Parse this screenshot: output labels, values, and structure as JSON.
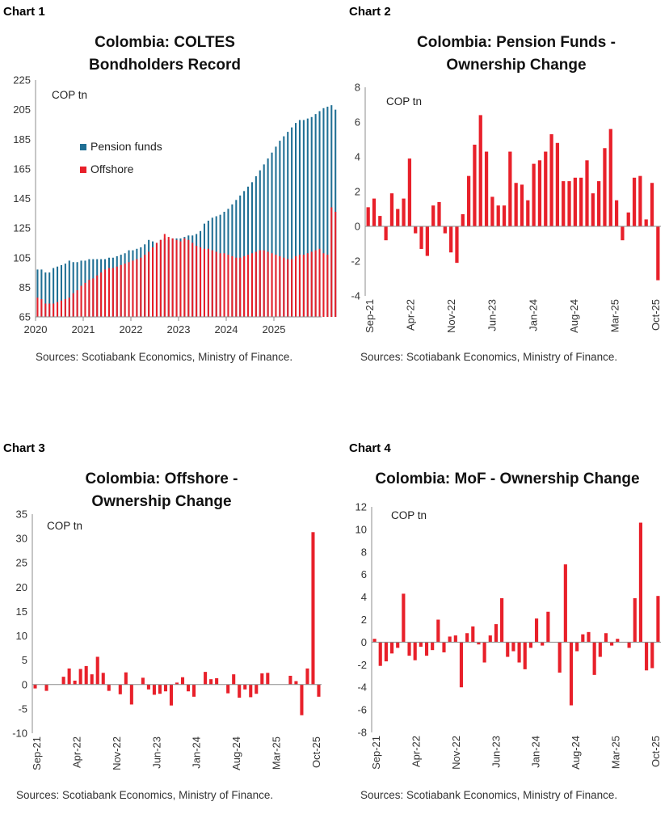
{
  "charts": [
    {
      "label": "Chart 1",
      "title_lines": [
        "Colombia: COLTES",
        "Bondholders Record"
      ],
      "unit": "COP tn",
      "source": "Sources: Scotiabank Economics, Ministry of Finance.",
      "legend": [
        {
          "name": "Pension funds",
          "color": "#1f6f94"
        },
        {
          "name": "Offshore",
          "color": "#e8202a"
        }
      ]
    },
    {
      "label": "Chart 2",
      "title_lines": [
        "Colombia: Pension Funds -",
        "Ownership Change"
      ],
      "unit": "COP tn",
      "source": "Sources: Scotiabank Economics, Ministry of Finance."
    },
    {
      "label": "Chart 3",
      "title_lines": [
        "Colombia: Offshore -",
        "Ownership Change"
      ],
      "unit": "COP tn",
      "source": "Sources: Scotiabank Economics, Ministry of Finance."
    },
    {
      "label": "Chart 4",
      "title_lines": [
        "Colombia: MoF - Ownership Change"
      ],
      "unit": "COP tn",
      "source": "Sources: Scotiabank Economics, Ministry of Finance."
    }
  ],
  "chart_data": [
    {
      "type": "bar",
      "title": "Colombia: COLTES Bondholders Record",
      "ylabel": "COP tn",
      "ylim": [
        65,
        225
      ],
      "yticks": [
        65,
        85,
        105,
        125,
        145,
        165,
        185,
        205,
        225
      ],
      "xticklabels": [
        "2020",
        "2021",
        "2022",
        "2023",
        "2024",
        "2025"
      ],
      "x_start": "Jan-2020",
      "frequency": "monthly",
      "grid": false,
      "legend_position": "middle-left",
      "series": [
        {
          "name": "Pension funds",
          "color": "#1f6f94",
          "values": [
            97,
            97,
            95,
            95,
            98,
            99,
            100,
            101,
            103,
            102,
            102,
            103,
            103,
            104,
            104,
            104,
            104,
            104,
            105,
            105,
            106,
            107,
            108,
            110,
            110,
            111,
            112,
            114,
            117,
            116,
            115,
            117,
            118,
            117,
            118,
            118,
            118,
            119,
            120,
            120,
            121,
            123,
            128,
            130,
            132,
            133,
            134,
            136,
            138,
            141,
            144,
            147,
            150,
            153,
            156,
            160,
            164,
            168,
            172,
            176,
            180,
            184,
            187,
            190,
            193,
            196,
            198,
            198,
            199,
            200,
            202,
            204,
            206,
            207,
            208,
            205
          ]
        },
        {
          "name": "Offshore",
          "color": "#e8202a",
          "values": [
            78,
            77,
            74,
            74,
            74,
            75,
            76,
            77,
            78,
            81,
            83,
            86,
            88,
            90,
            91,
            93,
            95,
            97,
            98,
            98,
            99,
            100,
            101,
            102,
            103,
            104,
            105,
            107,
            109,
            112,
            115,
            117,
            121,
            119,
            118,
            117,
            116,
            118,
            117,
            115,
            113,
            112,
            111,
            111,
            110,
            109,
            108,
            108,
            107,
            106,
            105,
            105,
            106,
            107,
            108,
            109,
            110,
            110,
            109,
            108,
            107,
            106,
            105,
            104,
            104,
            106,
            107,
            107,
            108,
            109,
            110,
            111,
            108,
            107,
            139,
            136
          ]
        }
      ]
    },
    {
      "type": "bar",
      "title": "Colombia: Pension Funds - Ownership Change",
      "ylabel": "COP tn",
      "ylim": [
        -4,
        8
      ],
      "yticks": [
        -4,
        -2,
        0,
        2,
        4,
        6,
        8
      ],
      "xticklabels": [
        "Sep-21",
        "Apr-22",
        "Nov-22",
        "Jun-23",
        "Jan-24",
        "Aug-24",
        "Mar-25",
        "Oct-25"
      ],
      "x_start": "Sep-2021",
      "frequency": "monthly",
      "grid": false,
      "series": [
        {
          "name": "Pension funds",
          "color": "#e8202a",
          "values": [
            1.1,
            1.6,
            0.6,
            -0.8,
            1.9,
            1.0,
            1.6,
            3.9,
            -0.4,
            -1.3,
            -1.7,
            1.2,
            1.4,
            -0.4,
            -1.5,
            -2.1,
            0.7,
            2.9,
            4.7,
            6.4,
            4.3,
            1.7,
            1.2,
            1.2,
            4.3,
            2.5,
            2.4,
            1.5,
            3.6,
            3.8,
            4.3,
            5.3,
            4.8,
            2.6,
            2.6,
            2.8,
            2.8,
            3.8,
            1.9,
            2.6,
            4.5,
            5.6,
            1.5,
            -0.8,
            0.8,
            2.8,
            2.9,
            0.4,
            2.5,
            -3.1
          ]
        }
      ]
    },
    {
      "type": "bar",
      "title": "Colombia: Offshore - Ownership Change",
      "ylabel": "COP tn",
      "ylim": [
        -10,
        35
      ],
      "yticks": [
        -10,
        -5,
        0,
        5,
        10,
        15,
        20,
        25,
        30,
        35
      ],
      "xticklabels": [
        "Sep-21",
        "Apr-22",
        "Nov-22",
        "Jun-23",
        "Jan-24",
        "Aug-24",
        "Mar-25",
        "Oct-25"
      ],
      "x_start": "Sep-2021",
      "frequency": "monthly",
      "grid": false,
      "series": [
        {
          "name": "Offshore",
          "color": "#e8202a",
          "values": [
            -0.8,
            0,
            -1.3,
            0,
            0,
            1.6,
            3.3,
            0.8,
            3.2,
            3.8,
            2.1,
            5.7,
            2.4,
            -1.3,
            0,
            -2.0,
            2.5,
            -4.1,
            0,
            1.4,
            -1.0,
            -2.1,
            -1.9,
            -1.4,
            -4.3,
            0.4,
            1.5,
            -1.4,
            -2.5,
            0,
            2.6,
            1.1,
            1.3,
            0,
            -1.8,
            2.1,
            -2.7,
            -1.0,
            -2.6,
            -1.9,
            2.3,
            2.4,
            0,
            0,
            0,
            1.8,
            0.7,
            -6.3,
            3.3,
            31.3,
            -2.5
          ]
        }
      ]
    },
    {
      "type": "bar",
      "title": "Colombia: MoF - Ownership Change",
      "ylabel": "COP tn",
      "ylim": [
        -8,
        12
      ],
      "yticks": [
        -8,
        -6,
        -4,
        -2,
        0,
        2,
        4,
        6,
        8,
        10,
        12
      ],
      "xticklabels": [
        "Sep-21",
        "Apr-22",
        "Nov-22",
        "Jun-23",
        "Jan-24",
        "Aug-24",
        "Mar-25",
        "Oct-25"
      ],
      "x_start": "Sep-2021",
      "frequency": "monthly",
      "grid": false,
      "series": [
        {
          "name": "MoF",
          "color": "#e8202a",
          "values": [
            0.3,
            -2.1,
            -1.7,
            -1.0,
            -0.5,
            4.3,
            -1.2,
            -1.6,
            -0.4,
            -1.2,
            -0.7,
            2.0,
            -0.9,
            0.5,
            0.6,
            -4.0,
            0.8,
            1.4,
            -0.2,
            -1.8,
            0.6,
            1.6,
            3.9,
            -1.3,
            -0.8,
            -1.8,
            -2.4,
            -0.5,
            2.1,
            -0.3,
            2.7,
            0,
            -2.7,
            6.9,
            -5.6,
            -0.8,
            0.7,
            0.9,
            -2.9,
            -1.3,
            0.8,
            -0.3,
            0.3,
            0,
            -0.5,
            3.9,
            10.6,
            -2.5,
            -2.3,
            4.1
          ]
        }
      ]
    }
  ]
}
